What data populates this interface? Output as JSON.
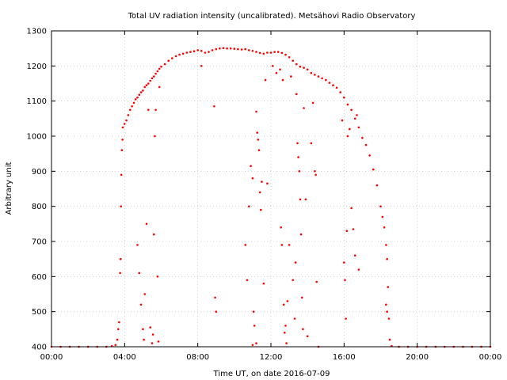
{
  "chart_data": {
    "type": "scatter",
    "title": "Total UV radiation intensity (uncalibrated). Metsähovi Radio Observatory",
    "xlabel": "Time UT, on date 2016-07-09",
    "ylabel": "Arbitrary unit",
    "xlim": [
      0,
      24
    ],
    "ylim": [
      400,
      1300
    ],
    "x_ticks": [
      0,
      4,
      8,
      12,
      16,
      20,
      24
    ],
    "x_tick_labels": [
      "00:00",
      "04:00",
      "08:00",
      "12:00",
      "16:00",
      "20:00",
      "00:00"
    ],
    "y_ticks": [
      400,
      500,
      600,
      700,
      800,
      900,
      1000,
      1100,
      1200,
      1300
    ],
    "y_tick_labels": [
      "400",
      "500",
      "600",
      "700",
      "800",
      "900",
      "1000",
      "1100",
      "1200",
      "1300"
    ],
    "grid": true,
    "legend": "none",
    "marker_color": "#ff0000",
    "series": [
      {
        "points": [
          [
            0.0,
            400
          ],
          [
            0.5,
            400
          ],
          [
            1.0,
            400
          ],
          [
            1.5,
            400
          ],
          [
            2.0,
            400
          ],
          [
            2.5,
            400
          ],
          [
            3.0,
            400
          ],
          [
            3.3,
            402
          ],
          [
            3.5,
            405
          ],
          [
            3.6,
            420
          ],
          [
            3.65,
            450
          ],
          [
            3.7,
            470
          ],
          [
            3.75,
            610
          ],
          [
            3.78,
            650
          ],
          [
            3.8,
            800
          ],
          [
            3.82,
            890
          ],
          [
            3.85,
            960
          ],
          [
            3.88,
            990
          ],
          [
            3.9,
            1025
          ],
          [
            4.0,
            1035
          ],
          [
            4.1,
            1045
          ],
          [
            4.2,
            1060
          ],
          [
            4.3,
            1075
          ],
          [
            4.4,
            1085
          ],
          [
            4.5,
            1095
          ],
          [
            4.6,
            1105
          ],
          [
            4.7,
            1110
          ],
          [
            4.8,
            1118
          ],
          [
            4.9,
            1125
          ],
          [
            5.0,
            1130
          ],
          [
            5.1,
            1140
          ],
          [
            5.2,
            1145
          ],
          [
            5.3,
            1150
          ],
          [
            5.4,
            1158
          ],
          [
            5.5,
            1165
          ],
          [
            5.6,
            1170
          ],
          [
            5.7,
            1178
          ],
          [
            5.8,
            1185
          ],
          [
            5.9,
            1192
          ],
          [
            6.0,
            1198
          ],
          [
            6.2,
            1205
          ],
          [
            6.4,
            1215
          ],
          [
            6.6,
            1222
          ],
          [
            6.8,
            1228
          ],
          [
            7.0,
            1232
          ],
          [
            7.2,
            1235
          ],
          [
            7.4,
            1238
          ],
          [
            7.6,
            1240
          ],
          [
            7.8,
            1242
          ],
          [
            8.0,
            1245
          ],
          [
            8.2,
            1243
          ],
          [
            8.4,
            1238
          ],
          [
            8.6,
            1240
          ],
          [
            8.8,
            1245
          ],
          [
            9.0,
            1248
          ],
          [
            9.2,
            1250
          ],
          [
            9.4,
            1251
          ],
          [
            9.6,
            1250
          ],
          [
            9.8,
            1250
          ],
          [
            10.0,
            1249
          ],
          [
            10.2,
            1248
          ],
          [
            10.4,
            1247
          ],
          [
            10.6,
            1248
          ],
          [
            10.8,
            1245
          ],
          [
            11.0,
            1243
          ],
          [
            11.2,
            1240
          ],
          [
            11.4,
            1237
          ],
          [
            11.6,
            1235
          ],
          [
            11.8,
            1238
          ],
          [
            12.0,
            1238
          ],
          [
            12.2,
            1240
          ],
          [
            12.4,
            1240
          ],
          [
            12.6,
            1237
          ],
          [
            12.8,
            1232
          ],
          [
            13.0,
            1225
          ],
          [
            13.2,
            1215
          ],
          [
            13.4,
            1205
          ],
          [
            13.6,
            1198
          ],
          [
            13.8,
            1195
          ],
          [
            14.0,
            1190
          ],
          [
            14.2,
            1180
          ],
          [
            14.4,
            1175
          ],
          [
            14.6,
            1170
          ],
          [
            14.8,
            1165
          ],
          [
            15.0,
            1160
          ],
          [
            15.2,
            1152
          ],
          [
            15.4,
            1145
          ],
          [
            15.6,
            1138
          ],
          [
            15.8,
            1125
          ],
          [
            16.0,
            1110
          ],
          [
            16.2,
            1090
          ],
          [
            16.4,
            1075
          ],
          [
            16.6,
            1050
          ],
          [
            16.8,
            1025
          ],
          [
            17.0,
            995
          ],
          [
            17.2,
            975
          ],
          [
            17.4,
            945
          ],
          [
            17.6,
            905
          ],
          [
            17.8,
            860
          ],
          [
            18.0,
            800
          ],
          [
            18.1,
            770
          ],
          [
            18.2,
            740
          ],
          [
            18.3,
            690
          ],
          [
            18.35,
            650
          ],
          [
            18.4,
            570
          ],
          [
            18.45,
            480
          ],
          [
            18.5,
            420
          ],
          [
            18.6,
            402
          ],
          [
            19.0,
            400
          ],
          [
            19.5,
            400
          ],
          [
            20.0,
            400
          ],
          [
            20.5,
            400
          ],
          [
            21.0,
            400
          ],
          [
            21.5,
            400
          ],
          [
            22.0,
            400
          ],
          [
            22.5,
            400
          ],
          [
            23.0,
            400
          ],
          [
            23.5,
            400
          ],
          [
            24.0,
            400
          ],
          [
            4.7,
            690
          ],
          [
            4.8,
            610
          ],
          [
            4.9,
            520
          ],
          [
            5.0,
            450
          ],
          [
            5.05,
            420
          ],
          [
            5.1,
            550
          ],
          [
            5.2,
            750
          ],
          [
            5.3,
            1075
          ],
          [
            5.4,
            455
          ],
          [
            5.5,
            410
          ],
          [
            5.55,
            435
          ],
          [
            5.6,
            720
          ],
          [
            5.65,
            1000
          ],
          [
            5.7,
            1075
          ],
          [
            5.8,
            600
          ],
          [
            5.85,
            415
          ],
          [
            5.9,
            1140
          ],
          [
            8.2,
            1200
          ],
          [
            8.9,
            1085
          ],
          [
            8.95,
            540
          ],
          [
            9.0,
            500
          ],
          [
            10.6,
            690
          ],
          [
            10.7,
            590
          ],
          [
            10.8,
            800
          ],
          [
            10.9,
            915
          ],
          [
            11.0,
            880
          ],
          [
            11.05,
            500
          ],
          [
            11.1,
            460
          ],
          [
            11.2,
            1070
          ],
          [
            11.25,
            1010
          ],
          [
            11.3,
            990
          ],
          [
            11.35,
            960
          ],
          [
            11.4,
            840
          ],
          [
            11.45,
            790
          ],
          [
            11.5,
            870
          ],
          [
            11.0,
            405
          ],
          [
            11.2,
            410
          ],
          [
            11.6,
            580
          ],
          [
            11.7,
            1160
          ],
          [
            11.8,
            865
          ],
          [
            12.1,
            1200
          ],
          [
            12.3,
            1180
          ],
          [
            12.5,
            1190
          ],
          [
            12.55,
            740
          ],
          [
            12.6,
            690
          ],
          [
            12.65,
            1160
          ],
          [
            12.7,
            520
          ],
          [
            12.75,
            440
          ],
          [
            12.8,
            460
          ],
          [
            12.85,
            410
          ],
          [
            12.9,
            530
          ],
          [
            13.0,
            690
          ],
          [
            13.1,
            1170
          ],
          [
            13.2,
            590
          ],
          [
            13.3,
            480
          ],
          [
            13.35,
            640
          ],
          [
            13.4,
            1120
          ],
          [
            13.45,
            980
          ],
          [
            13.5,
            940
          ],
          [
            13.55,
            900
          ],
          [
            13.6,
            820
          ],
          [
            13.65,
            720
          ],
          [
            13.7,
            540
          ],
          [
            13.75,
            450
          ],
          [
            13.8,
            1080
          ],
          [
            13.9,
            820
          ],
          [
            14.0,
            430
          ],
          [
            14.2,
            980
          ],
          [
            14.3,
            1095
          ],
          [
            14.4,
            900
          ],
          [
            14.45,
            890
          ],
          [
            14.5,
            585
          ],
          [
            14.6,
            400
          ],
          [
            15.9,
            1045
          ],
          [
            16.0,
            640
          ],
          [
            16.05,
            590
          ],
          [
            16.1,
            480
          ],
          [
            16.15,
            730
          ],
          [
            16.2,
            1000
          ],
          [
            16.3,
            1020
          ],
          [
            16.4,
            795
          ],
          [
            16.5,
            735
          ],
          [
            16.6,
            660
          ],
          [
            16.7,
            1060
          ],
          [
            16.8,
            620
          ],
          [
            18.3,
            520
          ],
          [
            18.35,
            500
          ]
        ]
      }
    ]
  }
}
